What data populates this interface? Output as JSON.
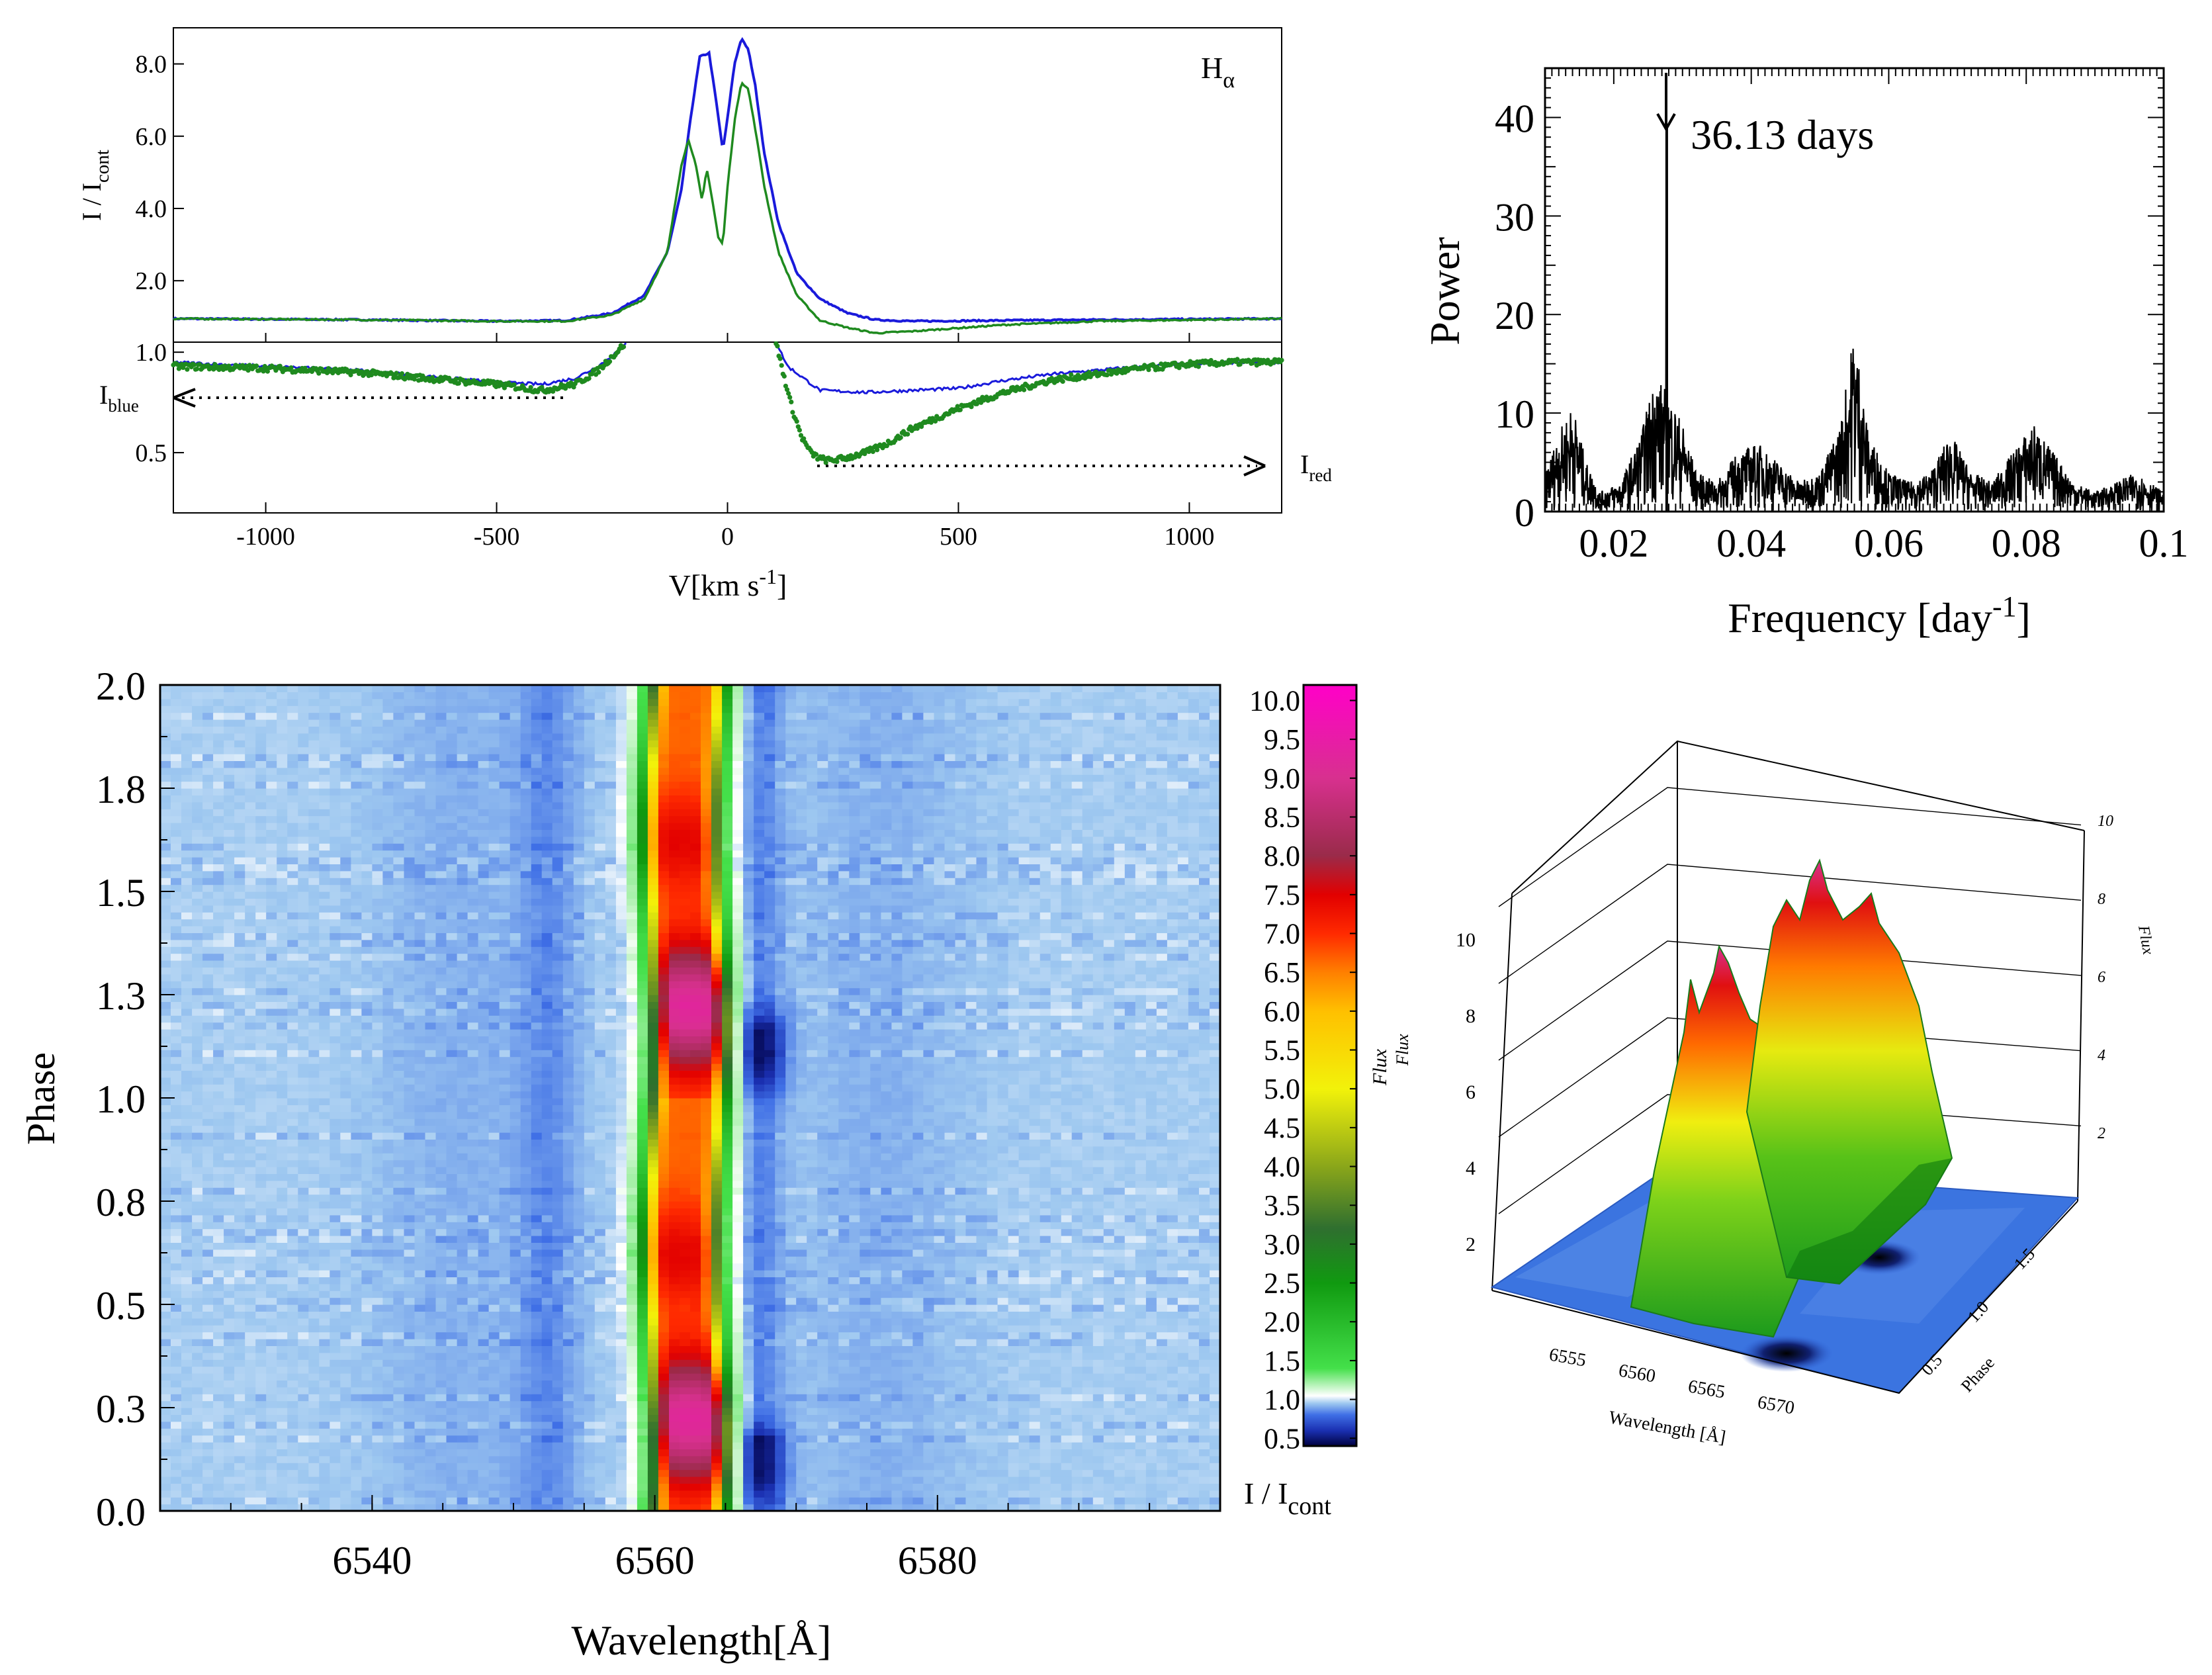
{
  "chart_data": [
    {
      "panel": "top-left",
      "type": "line",
      "title_label": "H",
      "title_sub": "α",
      "xlabel_main": "V[km s",
      "xlabel_sup": "-1",
      "xlabel_end": "]",
      "ylabel_main": "I / I",
      "ylabel_sub": "cont",
      "xlim": [
        -1200,
        1200
      ],
      "x_ticks": [
        -1000,
        -500,
        0,
        500,
        1000
      ],
      "upper": {
        "ylim": [
          0.3,
          9.0
        ],
        "y_ticks": [
          "2.0",
          "4.0",
          "6.0",
          "8.0"
        ],
        "series": [
          {
            "color": "#1a1adb",
            "x": [
              -1200,
              -800,
              -500,
              -350,
              -250,
              -180,
              -130,
              -100,
              -80,
              -60,
              -40,
              -25,
              -10,
              0,
              15,
              30,
              45,
              60,
              80,
              110,
              150,
              200,
              260,
              320,
              400,
              600,
              800,
              1200
            ],
            "y": [
              0.95,
              0.92,
              0.88,
              0.9,
              1.1,
              1.6,
              2.8,
              4.5,
              6.5,
              8.2,
              8.3,
              7.0,
              5.6,
              6.5,
              8.0,
              8.7,
              8.4,
              7.4,
              5.5,
              3.6,
              2.2,
              1.5,
              1.1,
              0.92,
              0.88,
              0.9,
              0.92,
              0.95
            ]
          },
          {
            "color": "#1f8a1f",
            "x": [
              -1200,
              -800,
              -500,
              -350,
              -250,
              -180,
              -130,
              -100,
              -85,
              -70,
              -55,
              -45,
              -35,
              -20,
              -10,
              0,
              15,
              30,
              45,
              60,
              80,
              110,
              150,
              200,
              260,
              320,
              400,
              600,
              800,
              1200
            ],
            "y": [
              0.95,
              0.92,
              0.88,
              0.88,
              1.05,
              1.5,
              2.8,
              5.2,
              5.9,
              5.3,
              4.2,
              5.1,
              4.4,
              3.2,
              3.0,
              4.6,
              6.4,
              7.5,
              7.3,
              6.2,
              4.6,
              2.8,
              1.6,
              0.9,
              0.7,
              0.55,
              0.6,
              0.78,
              0.88,
              0.95
            ]
          }
        ]
      },
      "lower": {
        "ylim": [
          0.2,
          1.05
        ],
        "y_ticks": [
          "0.5",
          "1.0"
        ],
        "blue_label_main": "I",
        "blue_label_sub": "blue",
        "red_label_main": "I",
        "red_label_sub": "red",
        "series": [
          {
            "color": "#1a1adb",
            "x": [
              -1200,
              -1000,
              -800,
              -600,
              -500,
              -400,
              -330,
              -280,
              -240,
              -220
            ],
            "y": [
              0.95,
              0.93,
              0.91,
              0.87,
              0.85,
              0.84,
              0.87,
              0.93,
              1.0,
              1.05
            ]
          },
          {
            "color": "#1a1adb",
            "x": [
              105,
              130,
              200,
              300,
              400,
              500,
              600,
              700,
              800,
              900,
              1000,
              1100,
              1200
            ],
            "y": [
              1.05,
              0.93,
              0.81,
              0.8,
              0.81,
              0.82,
              0.86,
              0.89,
              0.91,
              0.93,
              0.94,
              0.95,
              0.95
            ]
          },
          {
            "color": "#1f8a1f",
            "x": [
              -1200,
              -1000,
              -800,
              -600,
              -500,
              -400,
              -330,
              -280,
              -240,
              -220
            ],
            "y": [
              0.93,
              0.92,
              0.9,
              0.86,
              0.84,
              0.81,
              0.84,
              0.91,
              1.0,
              1.05
            ]
          },
          {
            "color": "#1f8a1f",
            "x": [
              105,
              120,
              140,
              160,
              180,
              200,
              220,
              250,
              300,
              350,
              400,
              500,
              600,
              700,
              800,
              900,
              1000,
              1100,
              1200
            ],
            "y": [
              1.05,
              0.9,
              0.72,
              0.58,
              0.5,
              0.47,
              0.46,
              0.47,
              0.5,
              0.55,
              0.62,
              0.72,
              0.8,
              0.86,
              0.89,
              0.92,
              0.94,
              0.95,
              0.95
            ]
          }
        ]
      }
    },
    {
      "panel": "top-right",
      "type": "line",
      "xlabel_main": "Frequency [day",
      "xlabel_sup": "-1",
      "xlabel_end": "]",
      "ylabel": "Power",
      "xlim": [
        0.01,
        0.1
      ],
      "ylim": [
        0,
        45
      ],
      "x_ticks": [
        "0.02",
        "0.04",
        "0.06",
        "0.08",
        "0.1"
      ],
      "y_ticks": [
        "0",
        "10",
        "20",
        "30",
        "40"
      ],
      "annotation": "36.13 days",
      "peak_frequency": 0.0277,
      "peak_power": 39,
      "envelope": [
        {
          "x": 0.01,
          "y": 4
        },
        {
          "x": 0.012,
          "y": 8
        },
        {
          "x": 0.014,
          "y": 11
        },
        {
          "x": 0.016,
          "y": 5
        },
        {
          "x": 0.018,
          "y": 2
        },
        {
          "x": 0.021,
          "y": 3
        },
        {
          "x": 0.024,
          "y": 8
        },
        {
          "x": 0.026,
          "y": 14
        },
        {
          "x": 0.028,
          "y": 12
        },
        {
          "x": 0.03,
          "y": 9
        },
        {
          "x": 0.032,
          "y": 4
        },
        {
          "x": 0.035,
          "y": 3
        },
        {
          "x": 0.038,
          "y": 6
        },
        {
          "x": 0.041,
          "y": 7
        },
        {
          "x": 0.044,
          "y": 5
        },
        {
          "x": 0.047,
          "y": 3
        },
        {
          "x": 0.05,
          "y": 4
        },
        {
          "x": 0.053,
          "y": 9
        },
        {
          "x": 0.055,
          "y": 19
        },
        {
          "x": 0.057,
          "y": 8
        },
        {
          "x": 0.06,
          "y": 4
        },
        {
          "x": 0.063,
          "y": 3
        },
        {
          "x": 0.066,
          "y": 4
        },
        {
          "x": 0.069,
          "y": 8
        },
        {
          "x": 0.072,
          "y": 4
        },
        {
          "x": 0.075,
          "y": 3
        },
        {
          "x": 0.078,
          "y": 6
        },
        {
          "x": 0.081,
          "y": 9
        },
        {
          "x": 0.084,
          "y": 6
        },
        {
          "x": 0.087,
          "y": 3
        },
        {
          "x": 0.09,
          "y": 2
        },
        {
          "x": 0.093,
          "y": 3
        },
        {
          "x": 0.096,
          "y": 4
        },
        {
          "x": 0.1,
          "y": 2
        }
      ]
    },
    {
      "panel": "bottom-left",
      "type": "heatmap",
      "xlabel": "Wavelength[Å]",
      "ylabel": "Phase",
      "xlim": [
        6525,
        6600
      ],
      "ylim": [
        0,
        2
      ],
      "x_ticks": [
        "6540",
        "6560",
        "6580"
      ],
      "y_ticks": [
        "0.0",
        "0.3",
        "0.5",
        "0.8",
        "1.0",
        "1.3",
        "1.5",
        "1.8",
        "2.0"
      ],
      "colorbar_ticks": [
        "0.5",
        "1.0",
        "1.5",
        "2.0",
        "2.5",
        "3.0",
        "3.5",
        "4.0",
        "4.5",
        "5.0",
        "5.5",
        "6.0",
        "6.5",
        "7.0",
        "7.5",
        "8.0",
        "8.5",
        "9.0",
        "9.5",
        "10.0"
      ],
      "colorbar_label_main": "I / I",
      "colorbar_label_sub": "cont",
      "colorbar_range": [
        0.4,
        10.2
      ],
      "colormap": [
        {
          "v": 0.4,
          "c": "#000040"
        },
        {
          "v": 0.6,
          "c": "#1a2fb0"
        },
        {
          "v": 0.8,
          "c": "#3f6fe6"
        },
        {
          "v": 0.95,
          "c": "#9ec8f0"
        },
        {
          "v": 1.05,
          "c": "#ffffff"
        },
        {
          "v": 1.4,
          "c": "#44e04a"
        },
        {
          "v": 2.5,
          "c": "#109a10"
        },
        {
          "v": 3.2,
          "c": "#2f6f2f"
        },
        {
          "v": 4.0,
          "c": "#8aa61a"
        },
        {
          "v": 5.0,
          "c": "#f2f20a"
        },
        {
          "v": 6.0,
          "c": "#ffc000"
        },
        {
          "v": 6.5,
          "c": "#ff8000"
        },
        {
          "v": 7.0,
          "c": "#ff2a00"
        },
        {
          "v": 7.5,
          "c": "#e20000"
        },
        {
          "v": 8.0,
          "c": "#9a2b4a"
        },
        {
          "v": 9.0,
          "c": "#d8308f"
        },
        {
          "v": 10.2,
          "c": "#ff00c8"
        }
      ]
    },
    {
      "panel": "bottom-right",
      "type": "surface",
      "xlabel": "Wavelength [Å]",
      "ylabel": "Phase",
      "zlabel": "Flux",
      "x_ticks": [
        "6555",
        "6560",
        "6565",
        "6570"
      ],
      "y_ticks": [
        "0.5",
        "1.0",
        "1.5"
      ],
      "z_ticks_left": [
        "2",
        "4",
        "6",
        "8",
        "10"
      ],
      "z_ticks_right": [
        "2",
        "4",
        "6",
        "8",
        "10"
      ]
    }
  ]
}
